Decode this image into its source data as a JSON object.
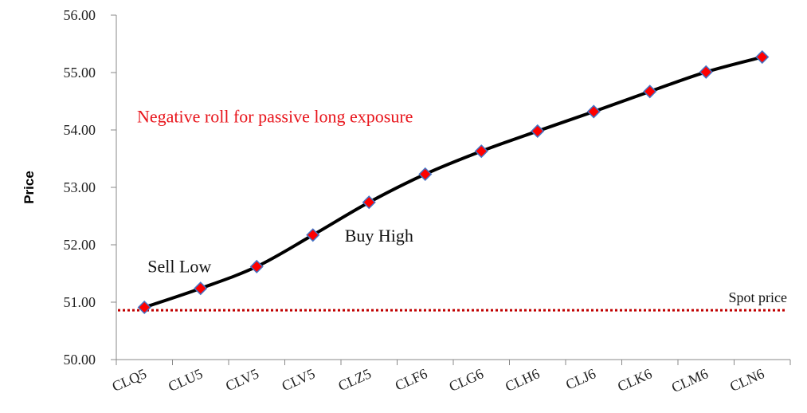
{
  "chart_data": {
    "type": "line",
    "xlabel": "",
    "ylabel": "Price",
    "ylim": [
      50,
      56
    ],
    "ytick_step": 1,
    "ytick_decimals": 2,
    "categories": [
      "CLQ5",
      "CLU5",
      "CLV5",
      "CLV5",
      "CLZ5",
      "CLF6",
      "CLG6",
      "CLH6",
      "CLJ6",
      "CLK6",
      "CLM6",
      "CLN6"
    ],
    "series": [
      {
        "values": [
          50.91,
          51.24,
          51.62,
          52.17,
          52.74,
          53.23,
          53.63,
          53.98,
          54.32,
          54.67,
          55.01,
          55.27
        ],
        "line_color": "#000000",
        "marker_fill": "#ff0000",
        "marker_edge": "#4472c4"
      }
    ],
    "spot_price": {
      "value": 50.86,
      "label": "Spot price",
      "color": "#c00000"
    },
    "annotations": [
      {
        "text": "Sell Low",
        "color": "#111111"
      },
      {
        "text": "Buy High",
        "color": "#111111"
      },
      {
        "text": "Negative roll for passive long exposure",
        "color": "#e8141b"
      }
    ],
    "grid": false,
    "legend": "none"
  }
}
